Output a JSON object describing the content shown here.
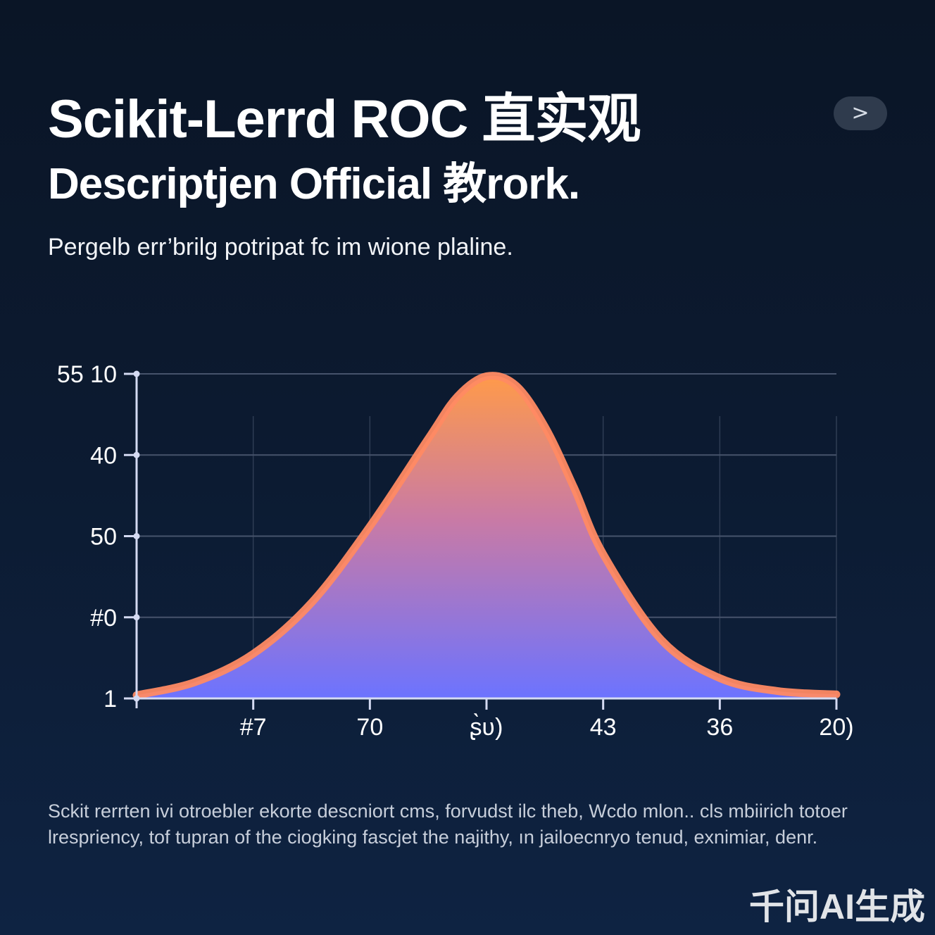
{
  "header": {
    "title_line1": "Scikit-Lerrd ROC 直实观",
    "title_line2": "Descriptjen Official 教rork.",
    "subtitle": "Pergelb err’brilg potripat fc im  wione plaline."
  },
  "nav": {
    "next_label": ">"
  },
  "chart_data": {
    "type": "area",
    "title": "",
    "xlabel": "",
    "ylabel": "",
    "y_tick_labels": [
      "55 10",
      "40",
      "50",
      "#0",
      "1"
    ],
    "x_tick_labels": [
      "#7",
      "70",
      "ʂ̀ʋ)",
      "43",
      "36",
      "20)"
    ],
    "y_range_ticks": [
      0,
      4
    ],
    "x_range_ticks": [
      0,
      6
    ],
    "grid": true,
    "series": [
      {
        "x": [
          0,
          0.5,
          1,
          1.5,
          2,
          2.5,
          2.75,
          3,
          3.25,
          3.5,
          3.75,
          4,
          4.5,
          5,
          5.5,
          6
        ],
        "y": [
          0.04,
          0.2,
          0.55,
          1.18,
          2.12,
          3.2,
          3.72,
          3.97,
          3.86,
          3.35,
          2.6,
          1.78,
          0.72,
          0.25,
          0.09,
          0.05
        ]
      }
    ],
    "colors": {
      "fill_top": "#ff9a4a",
      "fill_mid": "#c87aa6",
      "fill_bottom": "#6c73ff",
      "stroke": "#ff8a63",
      "axis": "#d4daf2",
      "grid": "#46536b"
    }
  },
  "body_text": "Sckit rerrten ivi otroebler ekorte descniort cms, forvudst ilc theb, Wcdo mlon.. cls mbiirich totoer lrespriency, tof tupran of the ciogking  fascjet the najithy, ın jailoecnryo tenud, exnimiar, denr.",
  "watermark": "千问AI生成"
}
